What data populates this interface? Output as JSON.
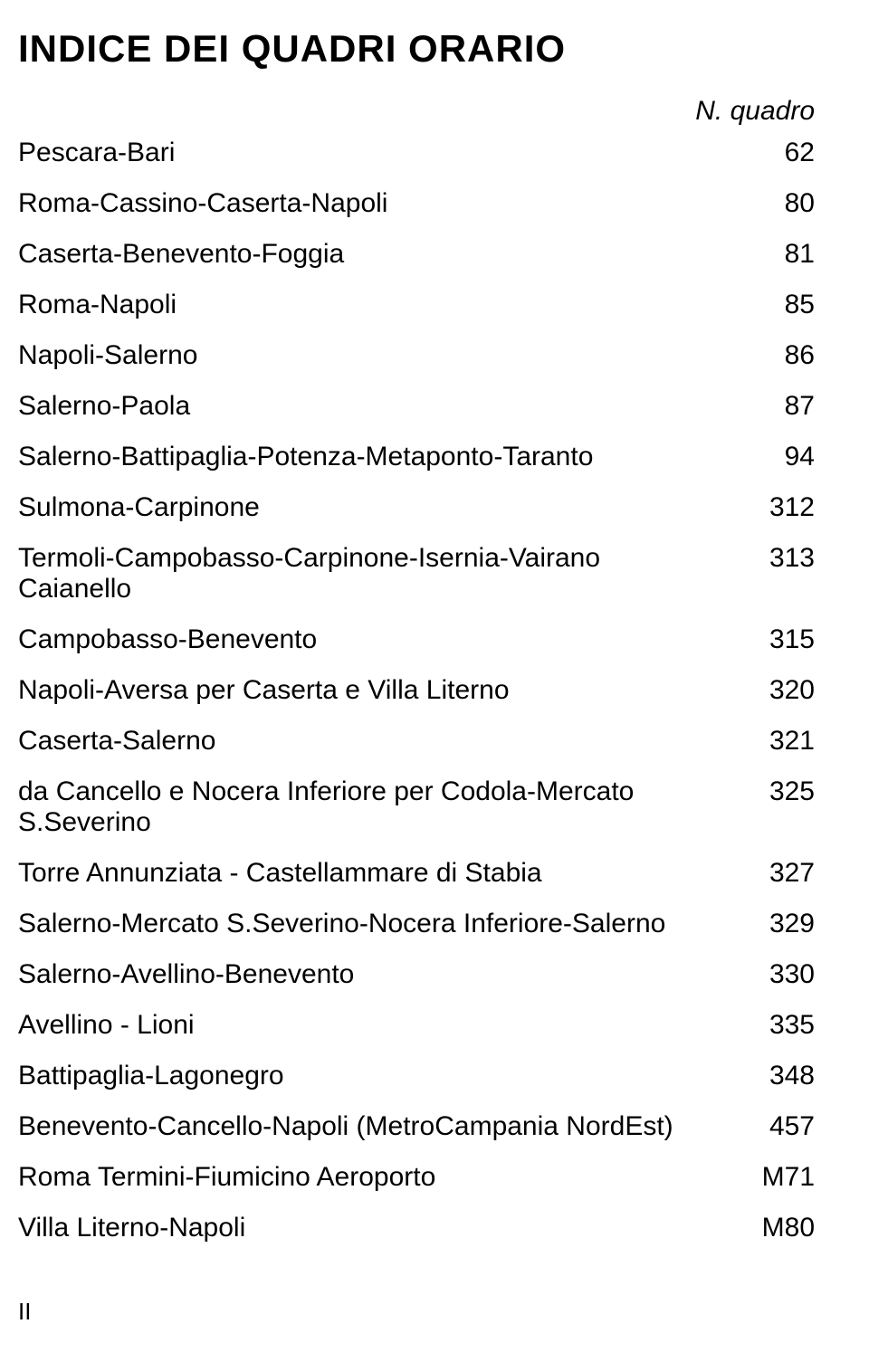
{
  "title": "INDICE DEI QUADRI ORARIO",
  "columnHeader": "N. quadro",
  "routes": [
    {
      "label": "Pescara-Bari",
      "value": "62"
    },
    {
      "label": "Roma-Cassino-Caserta-Napoli",
      "value": "80"
    },
    {
      "label": "Caserta-Benevento-Foggia",
      "value": "81"
    },
    {
      "label": "Roma-Napoli",
      "value": "85"
    },
    {
      "label": "Napoli-Salerno",
      "value": "86"
    },
    {
      "label": "Salerno-Paola",
      "value": "87"
    },
    {
      "label": "Salerno-Battipaglia-Potenza-Metaponto-Taranto",
      "value": "94"
    },
    {
      "label": "Sulmona-Carpinone",
      "value": "312"
    },
    {
      "label": "Termoli-Campobasso-Carpinone-Isernia-Vairano Caianello",
      "value": "313"
    },
    {
      "label": "Campobasso-Benevento",
      "value": "315"
    },
    {
      "label": "Napoli-Aversa per Caserta e Villa Literno",
      "value": "320"
    },
    {
      "label": "Caserta-Salerno",
      "value": "321"
    },
    {
      "label": "da Cancello e Nocera Inferiore per Codola-Mercato S.Severino",
      "value": "325"
    },
    {
      "label": "Torre Annunziata - Castellammare di Stabia",
      "value": "327"
    },
    {
      "label": "Salerno-Mercato S.Severino-Nocera Inferiore-Salerno",
      "value": "329"
    },
    {
      "label": "Salerno-Avellino-Benevento",
      "value": "330"
    },
    {
      "label": "Avellino - Lioni",
      "value": "335"
    },
    {
      "label": "Battipaglia-Lagonegro",
      "value": "348"
    },
    {
      "label": "Benevento-Cancello-Napoli (MetroCampania NordEst)",
      "value": "457"
    },
    {
      "label": "Roma Termini-Fiumicino Aeroporto",
      "value": "M71"
    },
    {
      "label": "Villa Literno-Napoli",
      "value": "M80"
    }
  ],
  "pageNumber": "II",
  "colors": {
    "text": "#000000",
    "background": "#ffffff"
  },
  "typography": {
    "title_fontsize": 42,
    "title_weight": "bold",
    "header_fontsize": 30,
    "header_style": "italic",
    "body_fontsize": 30,
    "page_fontsize": 26,
    "font_family": "Arial"
  }
}
